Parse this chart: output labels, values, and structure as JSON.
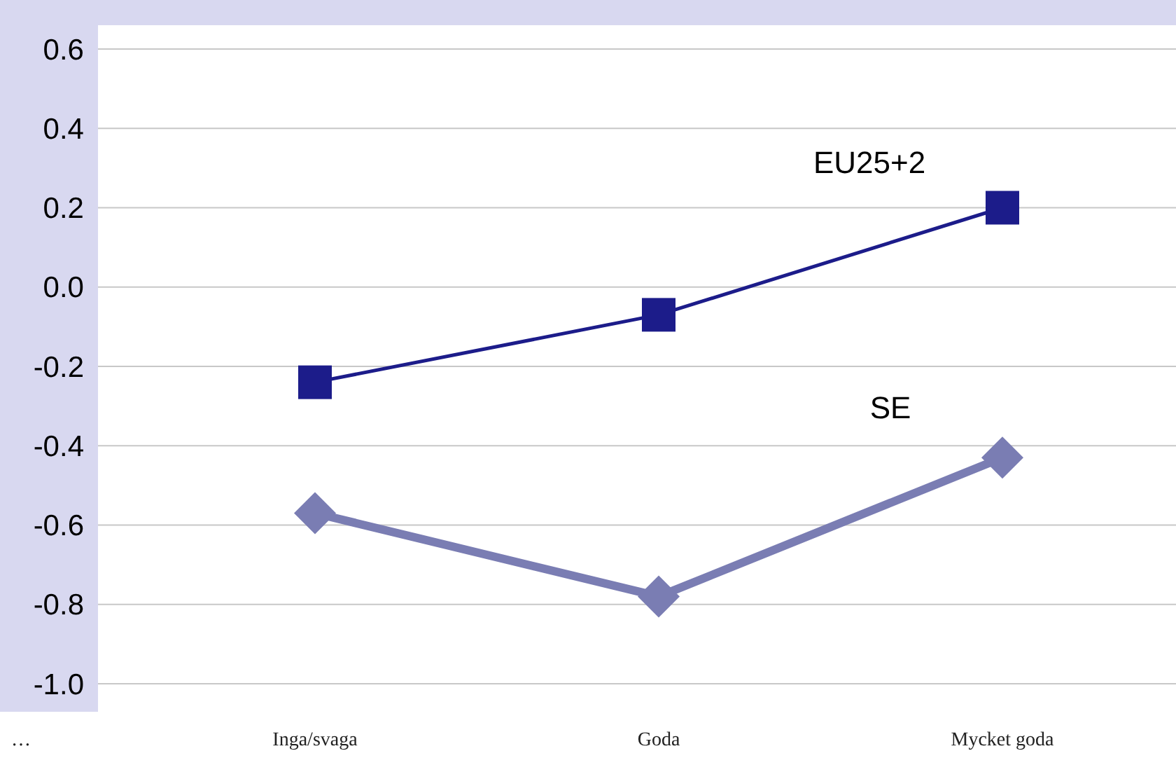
{
  "chart_data": {
    "type": "line",
    "categories": [
      "Inga/svaga",
      "Goda",
      "Mycket goda"
    ],
    "series": [
      {
        "name": "EU25+2",
        "color": "#1c1c8a",
        "marker": "square",
        "values": [
          -0.24,
          -0.07,
          0.2
        ]
      },
      {
        "name": "SE",
        "color": "#7a7db3",
        "marker": "diamond",
        "values": [
          -0.57,
          -0.78,
          -0.43
        ]
      }
    ],
    "ylim": [
      -1.0,
      0.6
    ],
    "yticks": [
      0.6,
      0.4,
      0.2,
      {
        "value": 0,
        "label": "0.0"
      },
      -0.2,
      -0.4,
      -0.6,
      -0.8,
      {
        "value": -1,
        "label": "-1.0"
      }
    ],
    "grid": "y",
    "legend": false,
    "annotations": [
      "…"
    ]
  }
}
